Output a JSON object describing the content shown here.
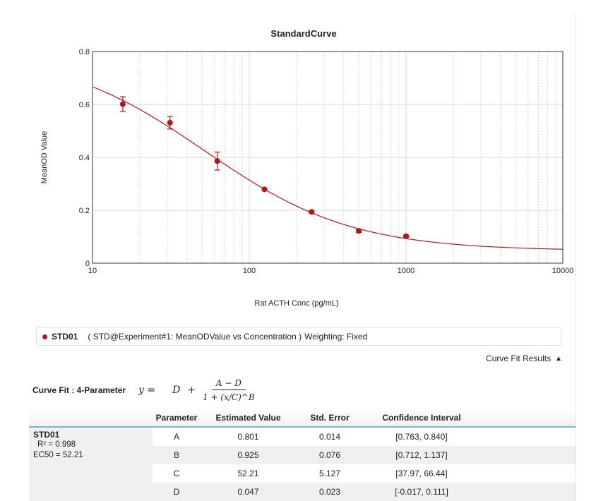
{
  "chart_data": {
    "type": "scatter",
    "title": "StandardCurve",
    "xlabel": "Rat ACTH Conc (pg/mL)",
    "ylabel": "MeanOD Value",
    "xscale": "log",
    "xlim": [
      10,
      10000
    ],
    "ylim": [
      0,
      0.8
    ],
    "xticks": [
      "10",
      "100",
      "1000",
      "10000"
    ],
    "yticks": [
      "0",
      "0.2",
      "0.4",
      "0.6",
      "0.8"
    ],
    "grid": true,
    "series": [
      {
        "name": "STD01",
        "color": "#b01818",
        "x": [
          15.6,
          31.2,
          62.5,
          125,
          250,
          500,
          1000
        ],
        "y": [
          0.601,
          0.531,
          0.386,
          0.279,
          0.194,
          0.122,
          0.102
        ],
        "err": [
          0.028,
          0.024,
          0.034,
          0.004,
          0.005,
          0.006,
          0.004
        ]
      }
    ],
    "fit": {
      "model": "4-Parameter",
      "A": 0.801,
      "B": 0.925,
      "C": 52.21,
      "D": 0.047
    }
  },
  "legend": {
    "name": "STD01",
    "desc": "( STD@Experiment#1: MeanODValue vs Concentration )",
    "weighting": "Weighting: Fixed"
  },
  "curve_fit_results_label": "Curve Fit Results",
  "fit_label": "Curve Fit : 4-Parameter",
  "formula": {
    "lhs": "y =",
    "d": "D",
    "plus": "+",
    "numerator": "A − D",
    "denominator": "1 + (x/C)^B"
  },
  "table": {
    "headers": [
      "Parameter",
      "Estimated Value",
      "Std. Error",
      "Confidence Interval"
    ],
    "series_name": "STD01",
    "r2_label": "R² = 0.998",
    "ec50_label": "EC50 = 52.21",
    "rows": [
      [
        "A",
        "0.801",
        "0.014",
        "[0.763, 0.840]"
      ],
      [
        "B",
        "0.925",
        "0.076",
        "[0.712, 1.137]"
      ],
      [
        "C",
        "52.21",
        "5.127",
        "[37.97, 66.44]"
      ],
      [
        "D",
        "0.047",
        "0.023",
        "[-0.017, 0.111]"
      ]
    ]
  }
}
